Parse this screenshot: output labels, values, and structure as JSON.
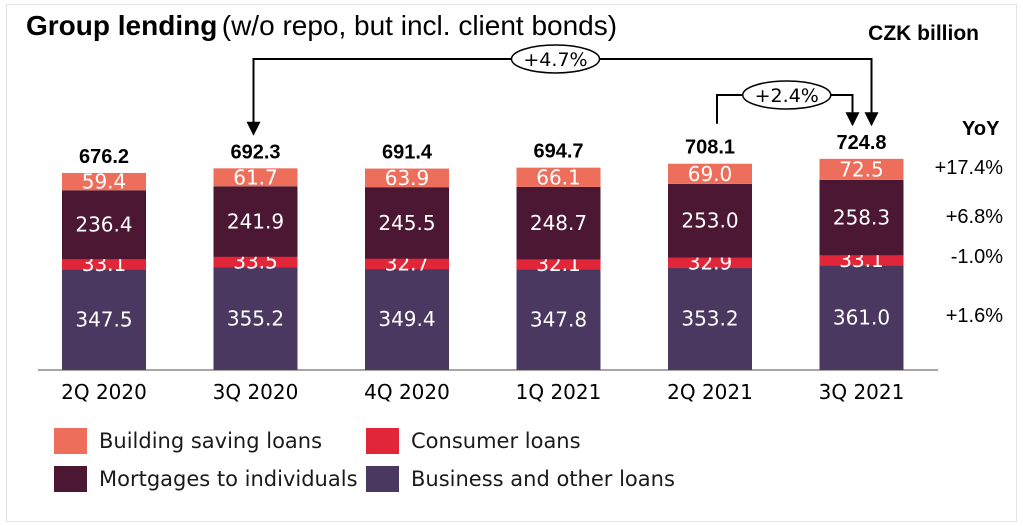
{
  "title": {
    "main": "Group lending",
    "sub": "(w/o repo, but incl. client bonds)"
  },
  "unit_label": "CZK billion",
  "yoy_header": "YoY",
  "chart_data": {
    "type": "bar",
    "stacked": true,
    "categories": [
      "2Q 2020",
      "3Q 2020",
      "4Q 2020",
      "1Q 2021",
      "2Q 2021",
      "3Q 2021"
    ],
    "series": [
      {
        "name": "Business and other loans",
        "values": [
          347.5,
          355.2,
          349.4,
          347.8,
          353.2,
          361.0
        ],
        "color": "#4a3860",
        "label_color": "#ffffff",
        "yoy": "+1.6%"
      },
      {
        "name": "Consumer loans",
        "values": [
          33.1,
          33.5,
          32.7,
          32.1,
          32.9,
          33.1
        ],
        "color": "#e2263a",
        "label_color": "#ffffff",
        "yoy": "-1.0%"
      },
      {
        "name": "Mortgages to individuals",
        "values": [
          236.4,
          241.9,
          245.5,
          248.7,
          253.0,
          258.3
        ],
        "color": "#4b1733",
        "label_color": "#ffffff",
        "yoy": "+6.8%"
      },
      {
        "name": "Building saving loans",
        "values": [
          59.4,
          61.7,
          63.9,
          66.1,
          69.0,
          72.5
        ],
        "color": "#ee6e5c",
        "label_color": "#ffffff",
        "yoy": "+17.4%"
      }
    ],
    "totals": [
      676.2,
      692.3,
      691.4,
      694.7,
      708.1,
      724.8
    ],
    "annotations": [
      {
        "text": "+4.7%",
        "from_category": "3Q 2020",
        "to_category": "3Q 2021"
      },
      {
        "text": "+2.4%",
        "from_category": "2Q 2021",
        "to_category": "3Q 2021"
      }
    ],
    "legend_position": "bottom-left",
    "grid": false
  },
  "legend": [
    {
      "label": "Building saving loans",
      "color": "#ee6e5c"
    },
    {
      "label": "Consumer loans",
      "color": "#e2263a"
    },
    {
      "label": "Mortgages to individuals",
      "color": "#4b1733"
    },
    {
      "label": "Business and other loans",
      "color": "#4a3860"
    }
  ]
}
